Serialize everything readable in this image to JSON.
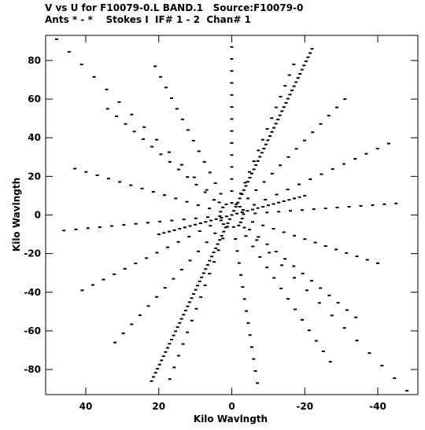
{
  "title_line1": "V vs U for F10079-0.L BAND.1   Source:F10079-0",
  "title_line2": "Ants * - *    Stokes I  IF# 1 - 2  Chan# 1",
  "colors": {
    "points": "#000000",
    "axes": "#000000",
    "background": "#ffffff"
  },
  "chart_data": {
    "type": "scatter",
    "title": "V vs U for F10079-0.L BAND.1   Source:F10079-0",
    "subtitle": "Ants * - *    Stokes I  IF# 1 - 2  Chan# 1",
    "xlabel": "Kilo Wavlngth",
    "ylabel": "Kilo Wavlngth",
    "xlim": [
      51,
      -51
    ],
    "ylim": [
      -93,
      93
    ],
    "x_direction": "reversed",
    "xticks": [
      40,
      20,
      0,
      -20,
      -40
    ],
    "yticks": [
      80,
      60,
      40,
      20,
      0,
      -20,
      -40,
      -60,
      -80
    ],
    "xtick_labels": [
      "40",
      "20",
      "0",
      "-20",
      "-40"
    ],
    "ytick_labels": [
      "80",
      "60",
      "40",
      "20",
      "0",
      "-20",
      "-40",
      "-60",
      "-80"
    ],
    "grid": false,
    "arm_endpoints": [
      {
        "u": 0,
        "v": 87
      },
      {
        "u": -17,
        "v": 78
      },
      {
        "u": -31,
        "v": 60
      },
      {
        "u": -43,
        "v": 37
      },
      {
        "u": -45,
        "v": 6
      },
      {
        "u": -40,
        "v": -25
      },
      {
        "u": -34,
        "v": -53
      },
      {
        "u": -27,
        "v": -76
      },
      {
        "u": -7,
        "v": -87
      },
      {
        "u": 17,
        "v": -85
      },
      {
        "u": 32,
        "v": -66
      },
      {
        "u": 41,
        "v": -39
      },
      {
        "u": 46,
        "v": -8
      },
      {
        "u": 43,
        "v": 24
      },
      {
        "u": 34,
        "v": 55
      },
      {
        "u": 21,
        "v": 77
      },
      {
        "u": 48,
        "v": 91
      },
      {
        "u": -48,
        "v": -91
      },
      {
        "u": -20,
        "v": 10
      },
      {
        "u": 20,
        "v": -10
      }
    ],
    "points_per_arm": 14,
    "series": [
      {
        "name": "",
        "points": []
      }
    ]
  }
}
